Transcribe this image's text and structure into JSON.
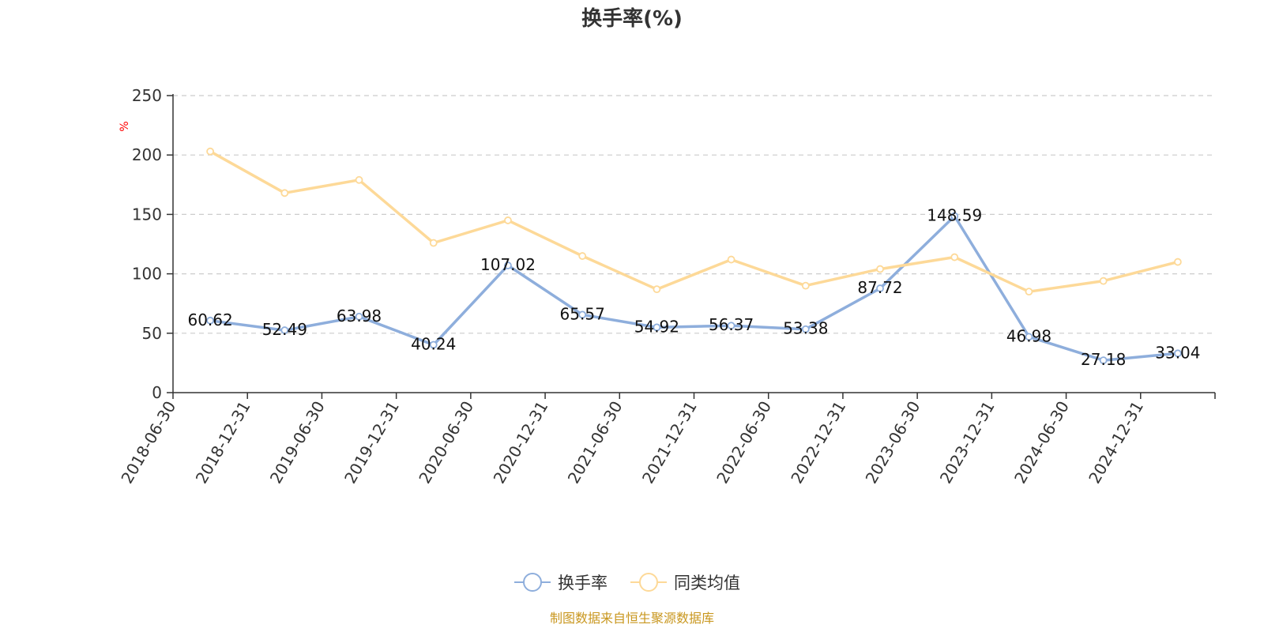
{
  "chart_data": {
    "type": "line",
    "title": "换手率(%)",
    "ylabel": "%",
    "ylim": [
      0,
      250
    ],
    "yticks": [
      0,
      50,
      100,
      150,
      200,
      250
    ],
    "grid": true,
    "legend_position": "bottom-center",
    "categories": [
      "2018-06-30",
      "2018-12-31",
      "2019-06-30",
      "2019-12-31",
      "2020-06-30",
      "2020-12-31",
      "2021-06-30",
      "2021-12-31",
      "2022-06-30",
      "2022-12-31",
      "2023-06-30",
      "2023-12-31",
      "2024-06-30",
      "2024-12-31"
    ],
    "series": [
      {
        "name": "换手率",
        "color": "#8eaedc",
        "show_labels": true,
        "values": [
          60.62,
          52.49,
          63.98,
          40.24,
          107.02,
          65.57,
          54.92,
          56.37,
          53.38,
          87.72,
          148.59,
          46.98,
          27.18,
          33.04
        ]
      },
      {
        "name": "同类均值",
        "color": "#fdd998",
        "show_labels": false,
        "values": [
          203,
          168,
          179,
          126,
          145,
          115,
          87,
          112,
          90,
          104,
          114,
          85,
          94,
          110
        ]
      }
    ]
  },
  "colors": {
    "axis": "#333333",
    "grid": "#cccccc",
    "unit_label": "#ff0000",
    "source": "#c9971f"
  },
  "source": "制图数据来自恒生聚源数据库"
}
